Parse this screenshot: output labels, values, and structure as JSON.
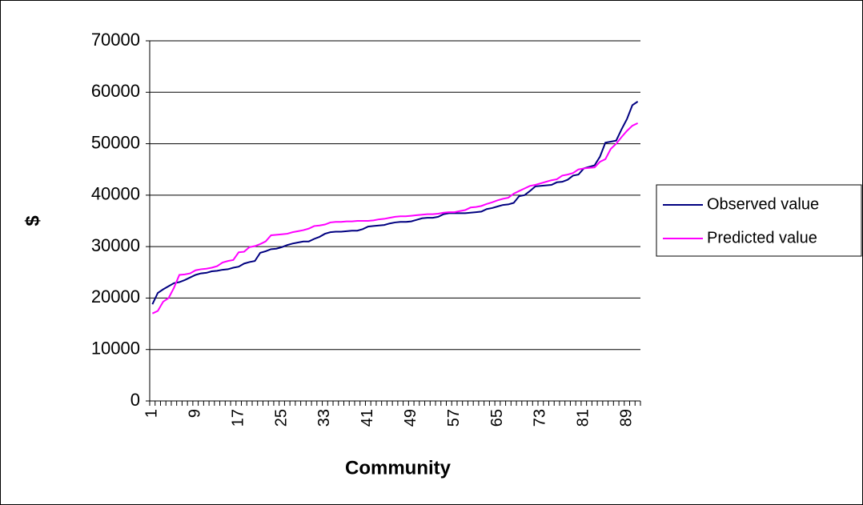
{
  "chart_data": {
    "type": "line",
    "x_label": "Community",
    "y_label": "$",
    "categories": [
      "1",
      null,
      null,
      null,
      null,
      null,
      null,
      null,
      "9",
      null,
      null,
      null,
      null,
      null,
      null,
      null,
      "17",
      null,
      null,
      null,
      null,
      null,
      null,
      null,
      "25",
      null,
      null,
      null,
      null,
      null,
      null,
      null,
      "33",
      null,
      null,
      null,
      null,
      null,
      null,
      null,
      "41",
      null,
      null,
      null,
      null,
      null,
      null,
      null,
      "49",
      null,
      null,
      null,
      null,
      null,
      null,
      null,
      "57",
      null,
      null,
      null,
      null,
      null,
      null,
      null,
      "65",
      null,
      null,
      null,
      null,
      null,
      null,
      null,
      "73",
      null,
      null,
      null,
      null,
      null,
      null,
      null,
      "81",
      null,
      null,
      null,
      null,
      null,
      null,
      null,
      "89",
      null,
      null
    ],
    "series": [
      {
        "name": "Observed value",
        "color": "#000080",
        "values": [
          18800,
          21000,
          21700,
          22300,
          22900,
          23100,
          23500,
          24000,
          24500,
          24800,
          24900,
          25200,
          25300,
          25500,
          25600,
          25900,
          26100,
          26700,
          27000,
          27200,
          28800,
          29100,
          29500,
          29600,
          29900,
          30300,
          30600,
          30800,
          31000,
          31000,
          31500,
          31900,
          32500,
          32800,
          32900,
          32900,
          33000,
          33100,
          33100,
          33400,
          33900,
          34000,
          34100,
          34200,
          34500,
          34700,
          34800,
          34800,
          34900,
          35200,
          35500,
          35600,
          35600,
          35800,
          36300,
          36500,
          36500,
          36500,
          36500,
          36600,
          36700,
          36800,
          37300,
          37500,
          37800,
          38100,
          38200,
          38500,
          39800,
          40000,
          40800,
          41700,
          41800,
          41900,
          42000,
          42500,
          42600,
          43000,
          43800,
          44000,
          45200,
          45500,
          45800,
          47500,
          50200,
          50400,
          50600,
          52800,
          54800,
          57500,
          58200
        ]
      },
      {
        "name": "Predicted value",
        "color": "#ff00ff",
        "values": [
          17000,
          17500,
          19300,
          20000,
          22000,
          24500,
          24600,
          24800,
          25400,
          25600,
          25700,
          25900,
          26200,
          26900,
          27200,
          27400,
          28900,
          29000,
          29900,
          30100,
          30500,
          31000,
          32200,
          32300,
          32400,
          32500,
          32800,
          33000,
          33200,
          33500,
          34000,
          34100,
          34300,
          34700,
          34800,
          34800,
          34900,
          34900,
          35000,
          35000,
          35000,
          35100,
          35300,
          35400,
          35600,
          35800,
          35900,
          35900,
          36000,
          36100,
          36200,
          36300,
          36300,
          36400,
          36600,
          36700,
          36700,
          36900,
          37100,
          37600,
          37700,
          37900,
          38300,
          38600,
          39000,
          39300,
          39500,
          40300,
          40800,
          41300,
          41800,
          42000,
          42300,
          42600,
          42900,
          43100,
          43800,
          44000,
          44300,
          45000,
          45200,
          45300,
          45400,
          46500,
          47000,
          49000,
          50000,
          51300,
          52500,
          53500,
          54000
        ]
      }
    ],
    "ylim": [
      0,
      70000
    ],
    "yticks": [
      0,
      10000,
      20000,
      30000,
      40000,
      50000,
      60000,
      70000
    ],
    "grid": true,
    "legend": "right"
  }
}
